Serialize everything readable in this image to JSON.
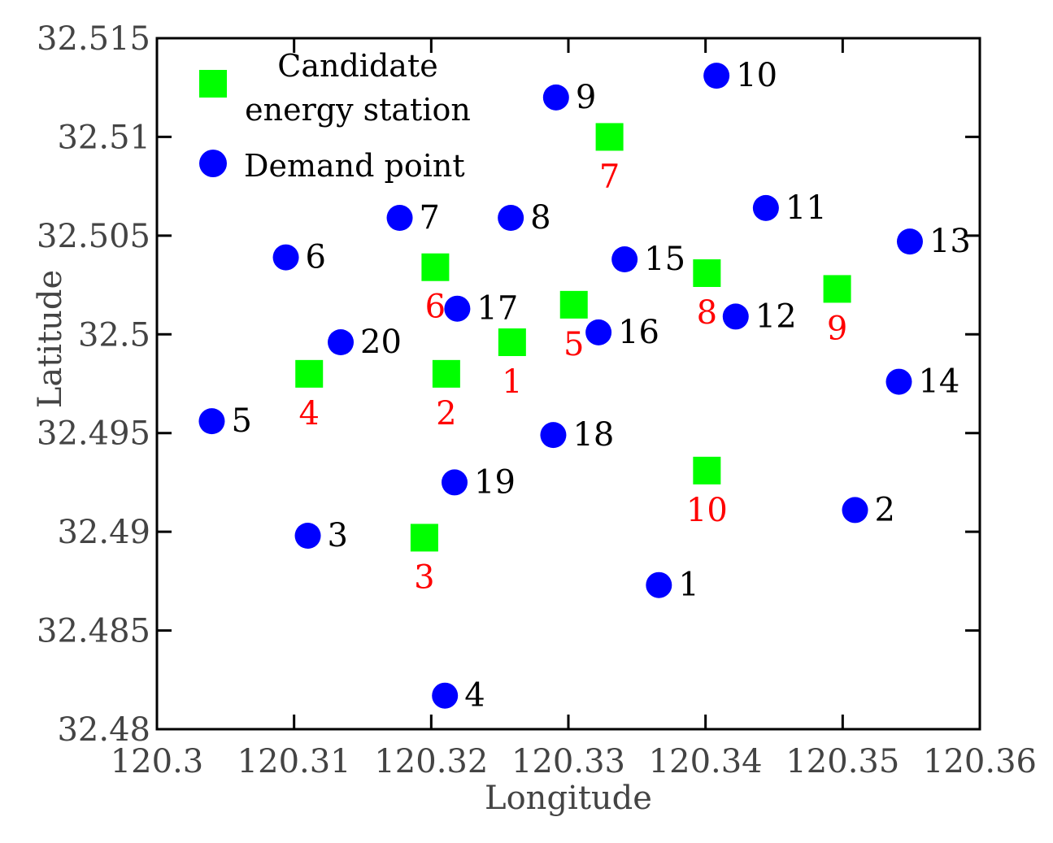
{
  "chart_data": {
    "type": "scatter",
    "xlabel": "Longitude",
    "ylabel": "Latitude",
    "xlim": [
      120.3,
      120.36
    ],
    "ylim": [
      32.48,
      32.515
    ],
    "x_ticks": [
      "120.3",
      "120.31",
      "120.32",
      "120.33",
      "120.34",
      "120.35",
      "120.36"
    ],
    "y_ticks": [
      "32.48",
      "32.485",
      "32.49",
      "32.495",
      "32.5",
      "32.505",
      "32.51",
      "32.515"
    ],
    "grid": false,
    "legend_position": "top-left",
    "series": [
      {
        "name": "Candidate energy station",
        "legend_lines": [
          "Candidate",
          "energy station"
        ],
        "marker": "square",
        "color": "#00FF00",
        "label_color": "#FF0000",
        "points": [
          {
            "label": "1",
            "x": 120.3259,
            "y": 32.4996
          },
          {
            "label": "2",
            "x": 120.3211,
            "y": 32.498
          },
          {
            "label": "3",
            "x": 120.3195,
            "y": 32.4897
          },
          {
            "label": "4",
            "x": 120.3111,
            "y": 32.498
          },
          {
            "label": "5",
            "x": 120.3304,
            "y": 32.5015
          },
          {
            "label": "6",
            "x": 120.3203,
            "y": 32.5034
          },
          {
            "label": "7",
            "x": 120.333,
            "y": 32.51
          },
          {
            "label": "8",
            "x": 120.3401,
            "y": 32.5031
          },
          {
            "label": "9",
            "x": 120.3496,
            "y": 32.5023
          },
          {
            "label": "10",
            "x": 120.3401,
            "y": 32.4931
          }
        ]
      },
      {
        "name": "Demand point",
        "marker": "circle",
        "color": "#0000FF",
        "label_color": "#000000",
        "points": [
          {
            "label": "1",
            "x": 120.3366,
            "y": 32.4873
          },
          {
            "label": "2",
            "x": 120.3509,
            "y": 32.4911
          },
          {
            "label": "3",
            "x": 120.311,
            "y": 32.4898
          },
          {
            "label": "4",
            "x": 120.321,
            "y": 32.4817
          },
          {
            "label": "5",
            "x": 120.304,
            "y": 32.4956
          },
          {
            "label": "6",
            "x": 120.3094,
            "y": 32.5039
          },
          {
            "label": "7",
            "x": 120.3177,
            "y": 32.5059
          },
          {
            "label": "8",
            "x": 120.3258,
            "y": 32.5059
          },
          {
            "label": "9",
            "x": 120.3291,
            "y": 32.512
          },
          {
            "label": "10",
            "x": 120.3408,
            "y": 32.5131
          },
          {
            "label": "11",
            "x": 120.3444,
            "y": 32.5064
          },
          {
            "label": "12",
            "x": 120.3422,
            "y": 32.5009
          },
          {
            "label": "13",
            "x": 120.3549,
            "y": 32.5047
          },
          {
            "label": "14",
            "x": 120.3541,
            "y": 32.4976
          },
          {
            "label": "15",
            "x": 120.3341,
            "y": 32.5038
          },
          {
            "label": "16",
            "x": 120.3322,
            "y": 32.5001
          },
          {
            "label": "17",
            "x": 120.3219,
            "y": 32.5013
          },
          {
            "label": "18",
            "x": 120.3289,
            "y": 32.4949
          },
          {
            "label": "19",
            "x": 120.3217,
            "y": 32.4925
          },
          {
            "label": "20",
            "x": 120.3134,
            "y": 32.4996
          }
        ]
      }
    ]
  }
}
